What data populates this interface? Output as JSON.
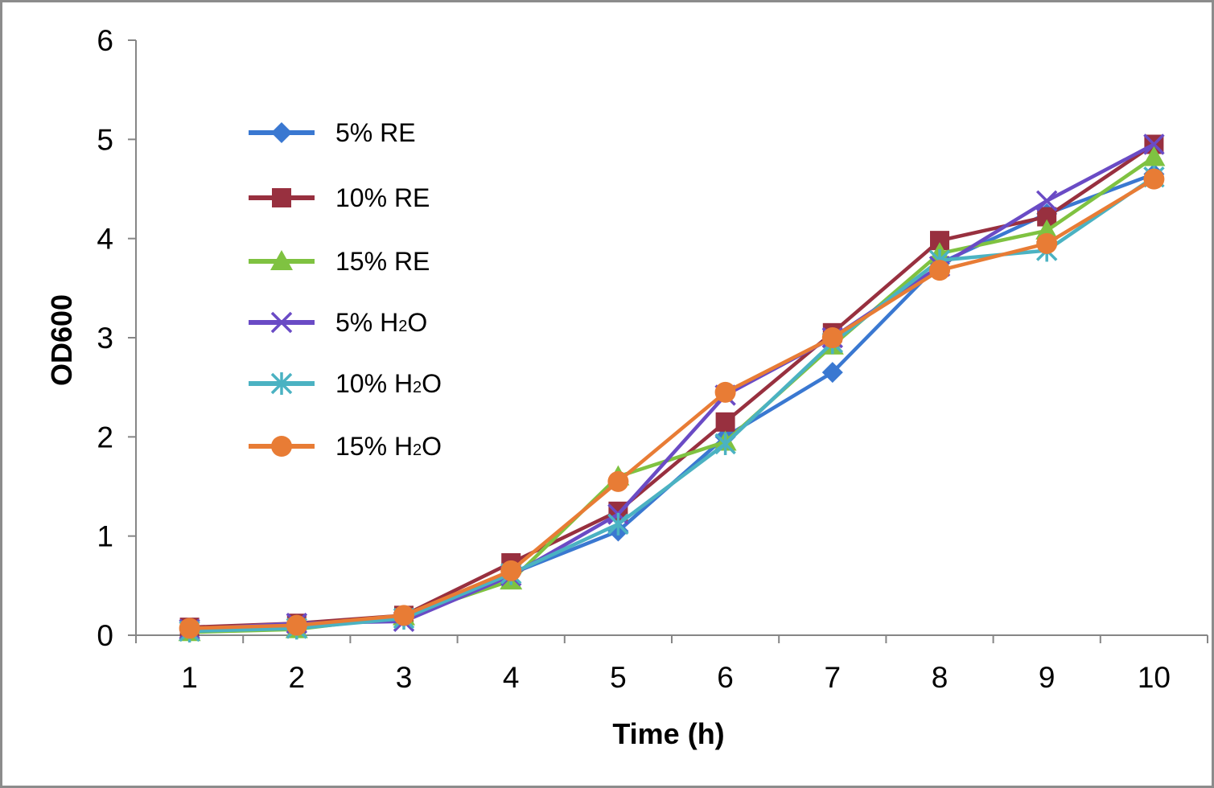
{
  "chart_data": {
    "type": "line",
    "title": "",
    "xlabel": "Time (h)",
    "ylabel": "OD600",
    "x": [
      1,
      2,
      3,
      4,
      5,
      6,
      7,
      8,
      9,
      10
    ],
    "ylim": [
      0,
      6
    ],
    "yticks": [
      0,
      1,
      2,
      3,
      4,
      5,
      6
    ],
    "grid": false,
    "legend_position": "top-left",
    "series": [
      {
        "name": "5%   RE",
        "label_main": "5%   RE",
        "label_sub": "",
        "label_tail": "",
        "color": "#3a78d1",
        "marker": "diamond",
        "values": [
          0.05,
          0.08,
          0.18,
          0.62,
          1.05,
          2.0,
          2.65,
          3.75,
          4.25,
          4.65
        ]
      },
      {
        "name": "10% RE",
        "label_main": "10% RE",
        "label_sub": "",
        "label_tail": "",
        "color": "#98303f",
        "marker": "square",
        "values": [
          0.08,
          0.12,
          0.2,
          0.73,
          1.25,
          2.15,
          3.05,
          3.98,
          4.22,
          4.95
        ]
      },
      {
        "name": "15% RE",
        "label_main": "15% RE",
        "label_sub": "",
        "label_tail": "",
        "color": "#7fc241",
        "marker": "triangle",
        "values": [
          0.03,
          0.06,
          0.19,
          0.55,
          1.6,
          1.95,
          2.92,
          3.85,
          4.08,
          4.82
        ]
      },
      {
        "name": "5%   H2O",
        "label_main": "5%   H",
        "label_sub": "2",
        "label_tail": "O",
        "color": "#6a4bc5",
        "marker": "x",
        "values": [
          0.06,
          0.12,
          0.14,
          0.6,
          1.22,
          2.42,
          3.0,
          3.72,
          4.38,
          4.95
        ]
      },
      {
        "name": "10% H2O",
        "label_main": "10% H",
        "label_sub": "2",
        "label_tail": "O",
        "color": "#4bb2c2",
        "marker": "star",
        "values": [
          0.04,
          0.07,
          0.17,
          0.62,
          1.12,
          1.93,
          2.95,
          3.78,
          3.88,
          4.62
        ]
      },
      {
        "name": "15% H2O",
        "label_main": "15% H",
        "label_sub": "2",
        "label_tail": "O",
        "color": "#e87c35",
        "marker": "circle",
        "values": [
          0.07,
          0.1,
          0.2,
          0.65,
          1.55,
          2.45,
          3.0,
          3.68,
          3.95,
          4.6
        ]
      }
    ]
  }
}
